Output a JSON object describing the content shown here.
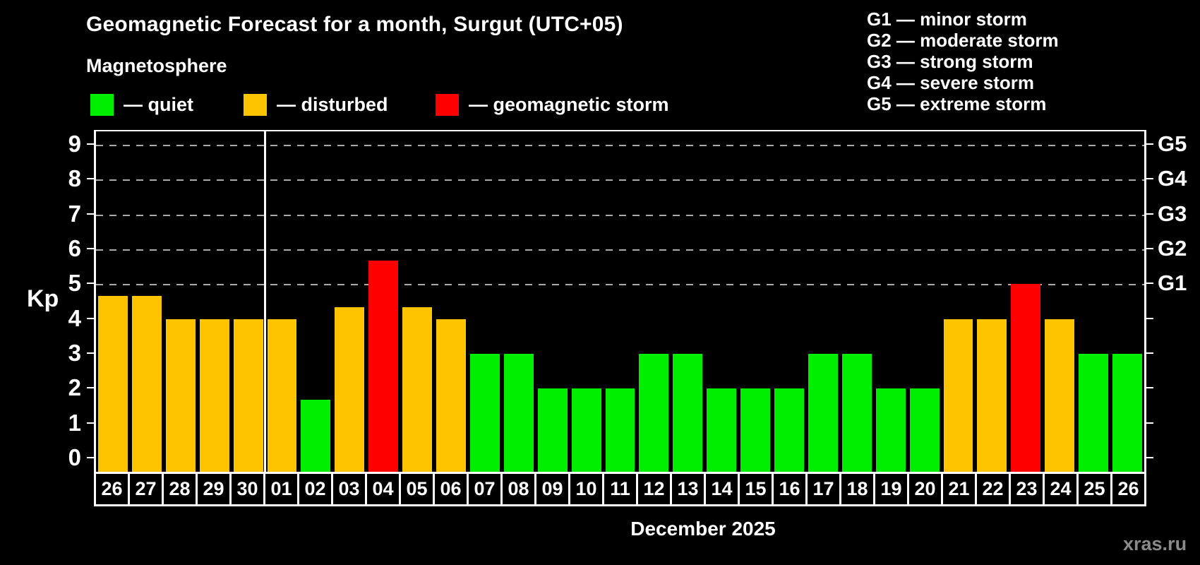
{
  "header": {
    "title": "Geomagnetic Forecast for a month, Surgut (UTC+05)",
    "subtitle": "Magnetosphere"
  },
  "legend": {
    "items": [
      {
        "key": "quiet",
        "label": "— quiet",
        "color": "#00ee00"
      },
      {
        "key": "disturbed",
        "label": "— disturbed",
        "color": "#ffc400"
      },
      {
        "key": "storm",
        "label": "— geomagnetic storm",
        "color": "#ff0000"
      }
    ]
  },
  "g_legend": {
    "lines": [
      "G1 — minor storm",
      "G2 — moderate storm",
      "G3 — strong storm",
      "G4 — severe storm",
      "G5 — extreme storm"
    ]
  },
  "chart_data": {
    "type": "bar",
    "title": "Geomagnetic Forecast for a month, Surgut (UTC+05)",
    "xlabel": "December 2025",
    "ylabel": "Kp",
    "ylim": [
      -0.4,
      9.4
    ],
    "yticks": [
      0,
      1,
      2,
      3,
      4,
      5,
      6,
      7,
      8,
      9
    ],
    "gridlines_at": [
      5,
      6,
      7,
      8,
      9
    ],
    "grid": "dashed horizontal at storm levels only",
    "right_axis": [
      {
        "kp": 5,
        "label": "G1"
      },
      {
        "kp": 6,
        "label": "G2"
      },
      {
        "kp": 7,
        "label": "G3"
      },
      {
        "kp": 8,
        "label": "G4"
      },
      {
        "kp": 9,
        "label": "G5"
      }
    ],
    "month_divider_after_index": 4,
    "categories": [
      "26",
      "27",
      "28",
      "29",
      "30",
      "01",
      "02",
      "03",
      "04",
      "05",
      "06",
      "07",
      "08",
      "09",
      "10",
      "11",
      "12",
      "13",
      "14",
      "15",
      "16",
      "17",
      "18",
      "19",
      "20",
      "21",
      "22",
      "23",
      "24",
      "25",
      "26"
    ],
    "values": [
      4.67,
      4.67,
      4,
      4,
      4,
      4,
      1.67,
      4.33,
      5.67,
      4.33,
      4,
      3,
      3,
      2,
      2,
      2,
      3,
      3,
      2,
      2,
      2,
      3,
      3,
      2,
      2,
      4,
      4,
      5,
      4,
      3,
      3
    ],
    "statuses": [
      "disturbed",
      "disturbed",
      "disturbed",
      "disturbed",
      "disturbed",
      "disturbed",
      "quiet",
      "disturbed",
      "storm",
      "disturbed",
      "disturbed",
      "quiet",
      "quiet",
      "quiet",
      "quiet",
      "quiet",
      "quiet",
      "quiet",
      "quiet",
      "quiet",
      "quiet",
      "quiet",
      "quiet",
      "quiet",
      "quiet",
      "disturbed",
      "disturbed",
      "storm",
      "disturbed",
      "quiet",
      "quiet"
    ],
    "status_colors": {
      "quiet": "#00ee00",
      "disturbed": "#ffc400",
      "storm": "#ff0000"
    }
  },
  "watermark": "xras.ru"
}
